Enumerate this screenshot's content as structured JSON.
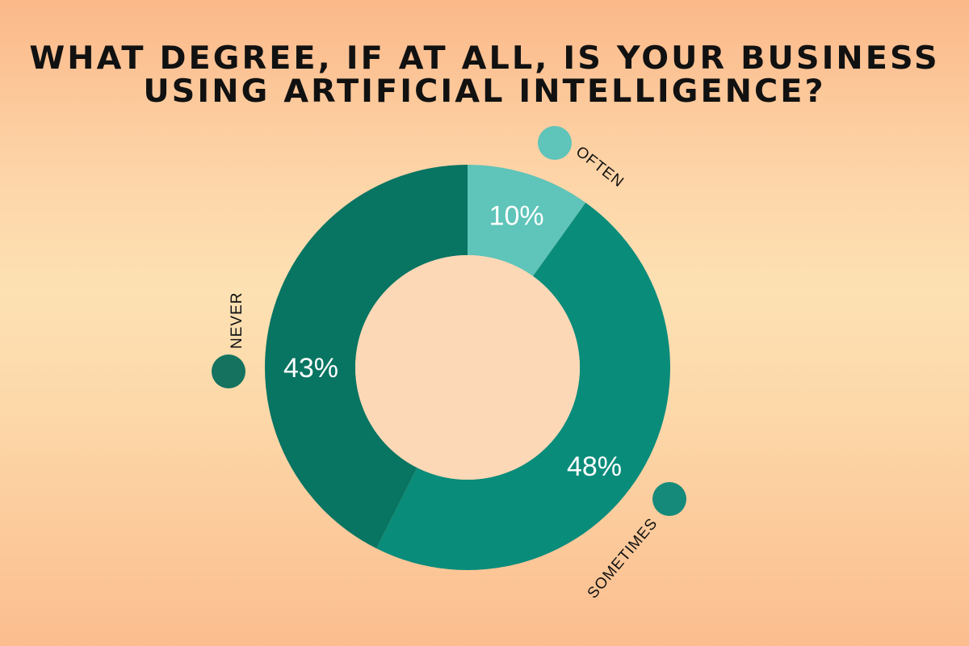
{
  "chart_data": {
    "type": "pie",
    "donut": true,
    "title_lines": [
      "WHAT DEGREE, IF AT ALL, IS YOUR BUSINESS",
      "USING ARTIFICIAL INTELLIGENCE?"
    ],
    "slices": [
      {
        "label": "OFTEN",
        "value": 10,
        "value_label": "10%",
        "color": "#5fc4b9"
      },
      {
        "label": "SOMETIMES",
        "value": 48,
        "value_label": "48%",
        "color": "#0a8c7b"
      },
      {
        "label": "NEVER",
        "value": 43,
        "value_label": "43%",
        "color": "#087462"
      }
    ],
    "legend_dot_colors": [
      "#5fc4b9",
      "#168a7a",
      "#14725f"
    ],
    "hole_color": "#fcd8b7",
    "legend_placement": "around"
  }
}
